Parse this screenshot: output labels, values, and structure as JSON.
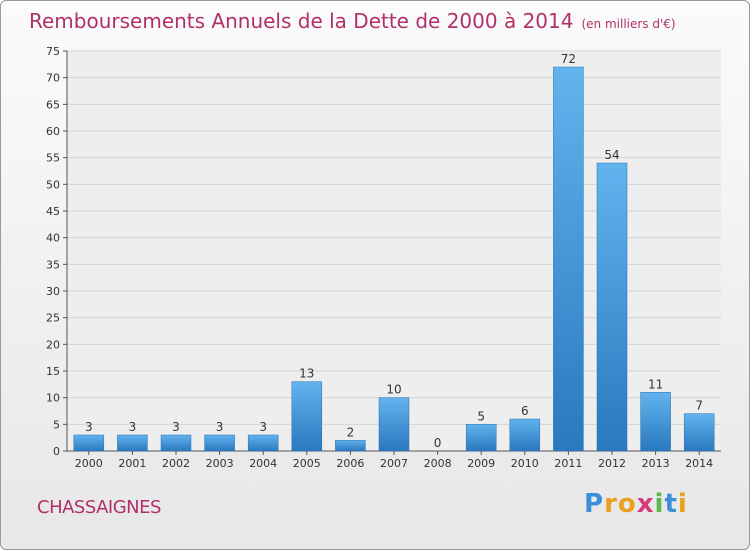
{
  "chart_data": {
    "type": "bar",
    "title": "Remboursements Annuels de la Dette de 2000 à 2014",
    "unit": "(en milliers d'€)",
    "categories": [
      "2000",
      "2001",
      "2002",
      "2003",
      "2004",
      "2005",
      "2006",
      "2007",
      "2008",
      "2009",
      "2010",
      "2011",
      "2012",
      "2013",
      "2014"
    ],
    "values": [
      3,
      3,
      3,
      3,
      3,
      13,
      2,
      10,
      0,
      5,
      6,
      72,
      54,
      11,
      7
    ],
    "ylim": [
      0,
      75
    ],
    "yticks": [
      0,
      5,
      10,
      15,
      20,
      25,
      30,
      35,
      40,
      45,
      50,
      55,
      60,
      65,
      70,
      75
    ],
    "xlabel": "",
    "ylabel": "",
    "grid": true
  },
  "commune": "CHASSAIGNES",
  "logo": {
    "letters": [
      "P",
      "r",
      "o",
      "x",
      "i",
      "t",
      "i"
    ],
    "colors": [
      "#3a8fd8",
      "#e8a020",
      "#e8a020",
      "#d63a7a",
      "#5cb84a",
      "#3a8fd8",
      "#e8a020"
    ]
  },
  "colors": {
    "accent": "#b0306a",
    "bar_top": "#62b3ee",
    "bar_bottom": "#2a78be",
    "grid": "#d4d4d4"
  }
}
